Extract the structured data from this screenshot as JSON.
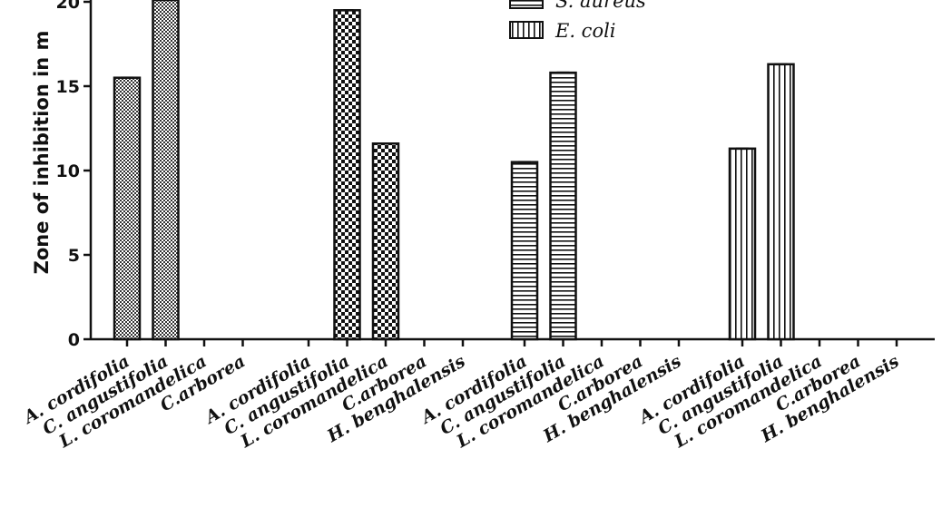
{
  "chart_data": {
    "type": "bar",
    "ylabel": "Zone of inhibition in m",
    "ylim": [
      0,
      20
    ],
    "yticks": [
      0,
      5,
      10,
      15,
      20
    ],
    "grid": false,
    "legend_position": "top-right",
    "legend": [
      "S. aureus",
      "E. coli"
    ],
    "groups": [
      {
        "pattern": "dots",
        "categories": [
          "A. cordifolia",
          "C. angustifolia",
          "L. coromandelica",
          "C.arborea"
        ],
        "values": [
          15.5,
          20.5,
          0,
          0
        ]
      },
      {
        "pattern": "checker",
        "categories": [
          "A. cordifolia",
          "C. angustifolia",
          "L. coromandelica",
          "C.arborea",
          "H. benghalensis"
        ],
        "values": [
          0,
          19.5,
          11.6,
          0,
          0
        ]
      },
      {
        "pattern": "hstripes",
        "series": "S. aureus",
        "categories": [
          "A. cordifolia",
          "C. angustifolia",
          "L. coromandelica",
          "C.arborea",
          "H. benghalensis"
        ],
        "values": [
          10.5,
          15.8,
          0,
          0,
          0
        ]
      },
      {
        "pattern": "vstripes",
        "series": "E. coli",
        "categories": [
          "A. cordifolia",
          "C. angustifolia",
          "L. coromandelica",
          "C.arborea",
          "H. benghalensis"
        ],
        "values": [
          11.3,
          16.3,
          0,
          0,
          0
        ]
      }
    ]
  }
}
